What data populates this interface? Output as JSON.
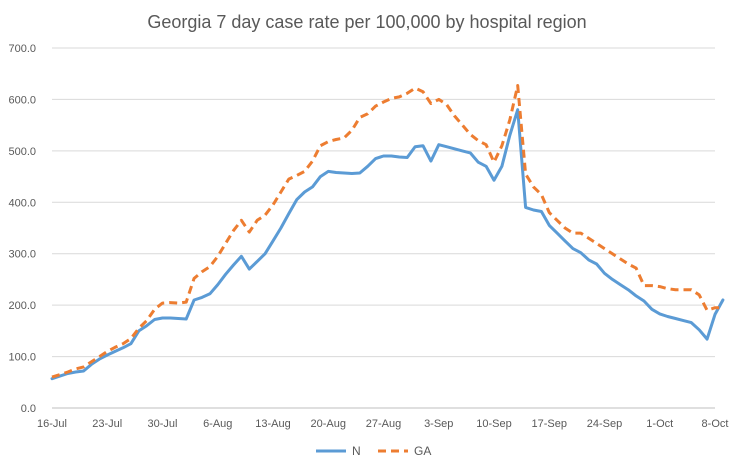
{
  "chart_data": {
    "type": "line",
    "title": "Georgia 7 day case rate per 100,000 by hospital region",
    "xlabel": "",
    "ylabel": "",
    "ylim": [
      0,
      700
    ],
    "yticks": [
      "0.0",
      "100.0",
      "200.0",
      "300.0",
      "400.0",
      "500.0",
      "600.0",
      "700.0"
    ],
    "x_start": "16-Jul",
    "x_end": "8-Oct",
    "xticks": [
      {
        "label": "16-Jul",
        "day": 0
      },
      {
        "label": "23-Jul",
        "day": 7
      },
      {
        "label": "30-Jul",
        "day": 14
      },
      {
        "label": "6-Aug",
        "day": 21
      },
      {
        "label": "13-Aug",
        "day": 28
      },
      {
        "label": "20-Aug",
        "day": 35
      },
      {
        "label": "27-Aug",
        "day": 42
      },
      {
        "label": "3-Sep",
        "day": 49
      },
      {
        "label": "10-Sep",
        "day": 56
      },
      {
        "label": "17-Sep",
        "day": 63
      },
      {
        "label": "24-Sep",
        "day": 70
      },
      {
        "label": "1-Oct",
        "day": 77
      },
      {
        "label": "8-Oct",
        "day": 84
      }
    ],
    "grid": true,
    "legend_position": "bottom",
    "series": [
      {
        "name": "N",
        "color": "#5b9bd5",
        "dash": "solid",
        "points": [
          [
            0,
            57
          ],
          [
            1,
            62
          ],
          [
            2,
            67
          ],
          [
            3,
            70
          ],
          [
            4,
            72
          ],
          [
            5,
            85
          ],
          [
            6,
            95
          ],
          [
            7,
            103
          ],
          [
            8,
            110
          ],
          [
            9,
            117
          ],
          [
            10,
            125
          ],
          [
            11,
            150
          ],
          [
            12,
            160
          ],
          [
            13,
            172
          ],
          [
            14,
            175
          ],
          [
            15,
            175
          ],
          [
            16,
            174
          ],
          [
            17,
            173
          ],
          [
            18,
            210
          ],
          [
            19,
            215
          ],
          [
            20,
            222
          ],
          [
            21,
            240
          ],
          [
            22,
            260
          ],
          [
            23,
            278
          ],
          [
            24,
            295
          ],
          [
            25,
            270
          ],
          [
            26,
            285
          ],
          [
            27,
            300
          ],
          [
            28,
            325
          ],
          [
            29,
            350
          ],
          [
            30,
            378
          ],
          [
            31,
            405
          ],
          [
            32,
            420
          ],
          [
            33,
            430
          ],
          [
            34,
            450
          ],
          [
            35,
            460
          ],
          [
            36,
            458
          ],
          [
            37,
            457
          ],
          [
            38,
            456
          ],
          [
            39,
            457
          ],
          [
            40,
            470
          ],
          [
            41,
            485
          ],
          [
            42,
            490
          ],
          [
            43,
            490
          ],
          [
            44,
            488
          ],
          [
            45,
            487
          ],
          [
            46,
            508
          ],
          [
            47,
            510
          ],
          [
            48,
            480
          ],
          [
            49,
            512
          ],
          [
            50,
            508
          ],
          [
            51,
            504
          ],
          [
            52,
            500
          ],
          [
            53,
            496
          ],
          [
            54,
            478
          ],
          [
            55,
            470
          ],
          [
            56,
            443
          ],
          [
            57,
            470
          ],
          [
            58,
            530
          ],
          [
            59,
            580
          ],
          [
            60,
            390
          ],
          [
            61,
            385
          ],
          [
            62,
            382
          ],
          [
            63,
            355
          ],
          [
            64,
            340
          ],
          [
            65,
            325
          ],
          [
            66,
            310
          ],
          [
            67,
            302
          ],
          [
            68,
            288
          ],
          [
            69,
            280
          ],
          [
            70,
            262
          ],
          [
            71,
            250
          ],
          [
            72,
            240
          ],
          [
            73,
            230
          ],
          [
            74,
            218
          ],
          [
            75,
            208
          ],
          [
            76,
            192
          ],
          [
            77,
            183
          ],
          [
            78,
            178
          ],
          [
            79,
            174
          ],
          [
            80,
            170
          ],
          [
            81,
            166
          ],
          [
            82,
            152
          ],
          [
            83,
            134
          ],
          [
            84,
            182
          ],
          [
            85,
            210
          ]
        ]
      },
      {
        "name": "GA",
        "color": "#ed7d31",
        "dash": "dashed",
        "points": [
          [
            0,
            60
          ],
          [
            1,
            65
          ],
          [
            2,
            70
          ],
          [
            3,
            76
          ],
          [
            4,
            80
          ],
          [
            5,
            90
          ],
          [
            6,
            100
          ],
          [
            7,
            110
          ],
          [
            8,
            118
          ],
          [
            9,
            125
          ],
          [
            10,
            135
          ],
          [
            11,
            155
          ],
          [
            12,
            170
          ],
          [
            13,
            192
          ],
          [
            14,
            204
          ],
          [
            15,
            205
          ],
          [
            16,
            204
          ],
          [
            17,
            206
          ],
          [
            18,
            252
          ],
          [
            19,
            265
          ],
          [
            20,
            275
          ],
          [
            21,
            295
          ],
          [
            22,
            320
          ],
          [
            23,
            345
          ],
          [
            24,
            365
          ],
          [
            25,
            342
          ],
          [
            26,
            365
          ],
          [
            27,
            375
          ],
          [
            28,
            395
          ],
          [
            29,
            420
          ],
          [
            30,
            445
          ],
          [
            31,
            452
          ],
          [
            32,
            460
          ],
          [
            33,
            480
          ],
          [
            34,
            510
          ],
          [
            35,
            518
          ],
          [
            36,
            522
          ],
          [
            37,
            525
          ],
          [
            38,
            540
          ],
          [
            39,
            565
          ],
          [
            40,
            572
          ],
          [
            41,
            587
          ],
          [
            42,
            595
          ],
          [
            43,
            602
          ],
          [
            44,
            605
          ],
          [
            45,
            612
          ],
          [
            46,
            622
          ],
          [
            47,
            615
          ],
          [
            48,
            592
          ],
          [
            49,
            600
          ],
          [
            50,
            590
          ],
          [
            51,
            568
          ],
          [
            52,
            550
          ],
          [
            53,
            532
          ],
          [
            54,
            520
          ],
          [
            55,
            512
          ],
          [
            56,
            478
          ],
          [
            57,
            510
          ],
          [
            58,
            560
          ],
          [
            59,
            627
          ],
          [
            60,
            455
          ],
          [
            61,
            430
          ],
          [
            62,
            415
          ],
          [
            63,
            380
          ],
          [
            64,
            365
          ],
          [
            65,
            350
          ],
          [
            66,
            340
          ],
          [
            67,
            340
          ],
          [
            68,
            330
          ],
          [
            69,
            320
          ],
          [
            70,
            310
          ],
          [
            71,
            300
          ],
          [
            72,
            290
          ],
          [
            73,
            280
          ],
          [
            74,
            272
          ],
          [
            75,
            238
          ],
          [
            76,
            238
          ],
          [
            77,
            236
          ],
          [
            78,
            232
          ],
          [
            79,
            230
          ],
          [
            80,
            230
          ],
          [
            81,
            230
          ],
          [
            82,
            220
          ],
          [
            83,
            190
          ],
          [
            84,
            195
          ],
          [
            85,
            195
          ]
        ]
      }
    ]
  }
}
